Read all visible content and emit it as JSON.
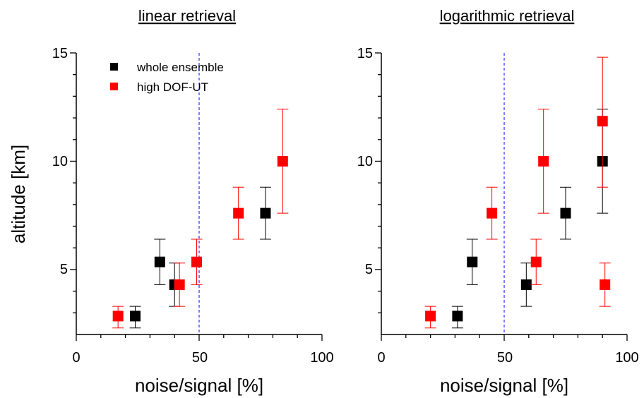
{
  "chart_data": [
    {
      "type": "scatter",
      "title": "linear retrieval",
      "xlabel": "noise/signal [%]",
      "ylabel": "altitude [km]",
      "xlim": [
        0,
        100
      ],
      "ylim": [
        2,
        15
      ],
      "xticks": [
        "0",
        "50",
        "100"
      ],
      "yticks": [
        "5",
        "10",
        "15"
      ],
      "reference_line_x": 50,
      "legend": {
        "placement": "top-left",
        "entries": [
          "whole ensemble",
          "high DOF-UT"
        ]
      },
      "series": [
        {
          "name": "whole ensemble",
          "color": "#000000",
          "points": [
            {
              "x": 24,
              "y": 2.85,
              "ylow": 2.3,
              "yhigh": 3.3
            },
            {
              "x": 34,
              "y": 5.35,
              "ylow": 4.3,
              "yhigh": 6.4
            },
            {
              "x": 40,
              "y": 4.3,
              "ylow": 3.3,
              "yhigh": 5.3
            },
            {
              "x": 77,
              "y": 7.6,
              "ylow": 6.4,
              "yhigh": 8.8
            }
          ]
        },
        {
          "name": "high DOF-UT",
          "color": "#ff0000",
          "points": [
            {
              "x": 17,
              "y": 2.85,
              "ylow": 2.3,
              "yhigh": 3.3
            },
            {
              "x": 42,
              "y": 4.3,
              "ylow": 3.3,
              "yhigh": 5.3
            },
            {
              "x": 49,
              "y": 5.35,
              "ylow": 4.3,
              "yhigh": 6.4
            },
            {
              "x": 66,
              "y": 7.6,
              "ylow": 6.4,
              "yhigh": 8.8
            },
            {
              "x": 84,
              "y": 10,
              "ylow": 7.6,
              "yhigh": 12.4
            }
          ]
        }
      ]
    },
    {
      "type": "scatter",
      "title": "logarithmic retrieval",
      "xlabel": "noise/signal [%]",
      "ylabel": "",
      "xlim": [
        0,
        100
      ],
      "ylim": [
        2,
        15
      ],
      "xticks": [
        "0",
        "50",
        "100"
      ],
      "yticks": [
        "5",
        "10",
        "15"
      ],
      "reference_line_x": 50,
      "series": [
        {
          "name": "whole ensemble",
          "color": "#000000",
          "points": [
            {
              "x": 31,
              "y": 2.85,
              "ylow": 2.3,
              "yhigh": 3.3
            },
            {
              "x": 37,
              "y": 5.35,
              "ylow": 4.3,
              "yhigh": 6.4
            },
            {
              "x": 59,
              "y": 4.3,
              "ylow": 3.3,
              "yhigh": 5.3
            },
            {
              "x": 75,
              "y": 7.6,
              "ylow": 6.4,
              "yhigh": 8.8
            },
            {
              "x": 90,
              "y": 10,
              "ylow": 7.6,
              "yhigh": 12.4
            }
          ]
        },
        {
          "name": "high DOF-UT",
          "color": "#ff0000",
          "points": [
            {
              "x": 20,
              "y": 2.85,
              "ylow": 2.3,
              "yhigh": 3.3
            },
            {
              "x": 45,
              "y": 7.6,
              "ylow": 6.4,
              "yhigh": 8.8
            },
            {
              "x": 63,
              "y": 5.35,
              "ylow": 4.3,
              "yhigh": 6.4
            },
            {
              "x": 66,
              "y": 10,
              "ylow": 7.6,
              "yhigh": 12.4
            },
            {
              "x": 90,
              "y": 11.85,
              "ylow": 8.8,
              "yhigh": 14.8
            },
            {
              "x": 91,
              "y": 4.3,
              "ylow": 3.3,
              "yhigh": 5.3
            }
          ]
        }
      ]
    }
  ]
}
